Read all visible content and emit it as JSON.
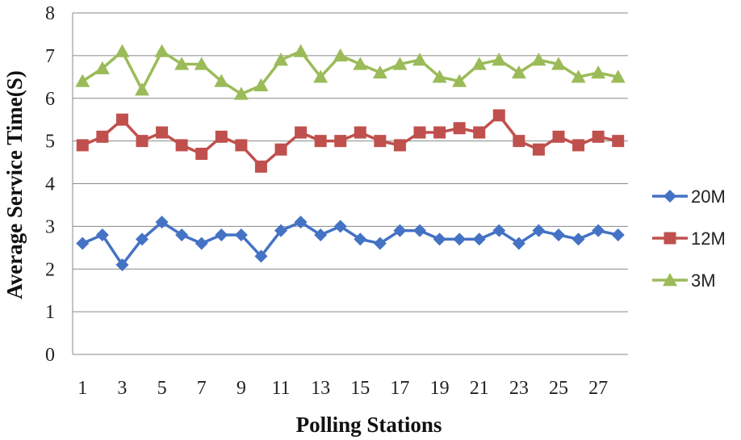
{
  "chart_data": {
    "type": "line",
    "title": "",
    "xlabel": "Polling Stations",
    "ylabel": "Average Service Time(S)",
    "ylim": [
      0,
      8
    ],
    "yticks": [
      0,
      1,
      2,
      3,
      4,
      5,
      6,
      7,
      8
    ],
    "grid": true,
    "legend_position": "right",
    "x": [
      1,
      2,
      3,
      4,
      5,
      6,
      7,
      8,
      9,
      10,
      11,
      12,
      13,
      14,
      15,
      16,
      17,
      18,
      19,
      20,
      21,
      22,
      23,
      24,
      25,
      26,
      27,
      28
    ],
    "x_tick_labels": [
      "1",
      "3",
      "5",
      "7",
      "9",
      "11",
      "13",
      "15",
      "17",
      "19",
      "21",
      "23",
      "25",
      "27"
    ],
    "series": [
      {
        "name": "20M",
        "marker": "diamond",
        "color": "#4472C4",
        "values": [
          2.6,
          2.8,
          2.1,
          2.7,
          3.1,
          2.8,
          2.6,
          2.8,
          2.8,
          2.3,
          2.9,
          3.1,
          2.8,
          3.0,
          2.7,
          2.6,
          2.9,
          2.9,
          2.7,
          2.7,
          2.7,
          2.9,
          2.6,
          2.9,
          2.8,
          2.7,
          2.9,
          2.8
        ]
      },
      {
        "name": "12M",
        "marker": "square",
        "color": "#C0504D",
        "values": [
          4.9,
          5.1,
          5.5,
          5.0,
          5.2,
          4.9,
          4.7,
          5.1,
          4.9,
          4.4,
          4.8,
          5.2,
          5.0,
          5.0,
          5.2,
          5.0,
          4.9,
          5.2,
          5.2,
          5.3,
          5.2,
          5.6,
          5.0,
          4.8,
          5.1,
          4.9,
          5.1,
          5.0
        ]
      },
      {
        "name": "3M",
        "marker": "triangle",
        "color": "#9BBB59",
        "values": [
          6.4,
          6.7,
          7.1,
          6.2,
          7.1,
          6.8,
          6.8,
          6.4,
          6.1,
          6.3,
          6.9,
          7.1,
          6.5,
          7.0,
          6.8,
          6.6,
          6.8,
          6.9,
          6.5,
          6.4,
          6.8,
          6.9,
          6.6,
          6.9,
          6.8,
          6.5,
          6.6,
          6.5
        ]
      }
    ]
  }
}
